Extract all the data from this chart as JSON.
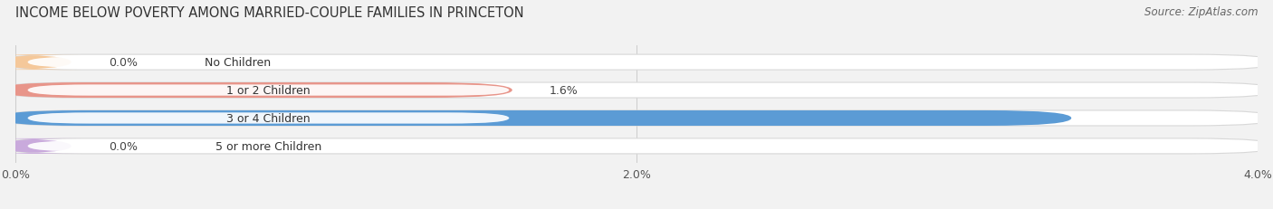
{
  "title": "INCOME BELOW POVERTY AMONG MARRIED-COUPLE FAMILIES IN PRINCETON",
  "source": "Source: ZipAtlas.com",
  "categories": [
    "No Children",
    "1 or 2 Children",
    "3 or 4 Children",
    "5 or more Children"
  ],
  "values": [
    0.0,
    1.6,
    3.4,
    0.0
  ],
  "bar_colors": [
    "#f5c89a",
    "#e8958a",
    "#5b9bd5",
    "#c9aadc"
  ],
  "label_text_colors": [
    "#444444",
    "#444444",
    "#ffffff",
    "#444444"
  ],
  "xlim": [
    0,
    4.0
  ],
  "xticks": [
    0.0,
    2.0,
    4.0
  ],
  "xtick_labels": [
    "0.0%",
    "2.0%",
    "4.0%"
  ],
  "bg_color": "#f2f2f2",
  "bar_bg_color": "#e8e8e8",
  "bar_bg_border": "#d8d8d8",
  "title_fontsize": 10.5,
  "source_fontsize": 8.5,
  "value_fontsize": 9,
  "category_fontsize": 9,
  "tick_fontsize": 9,
  "bar_height": 0.55,
  "bar_gap": 1.0
}
